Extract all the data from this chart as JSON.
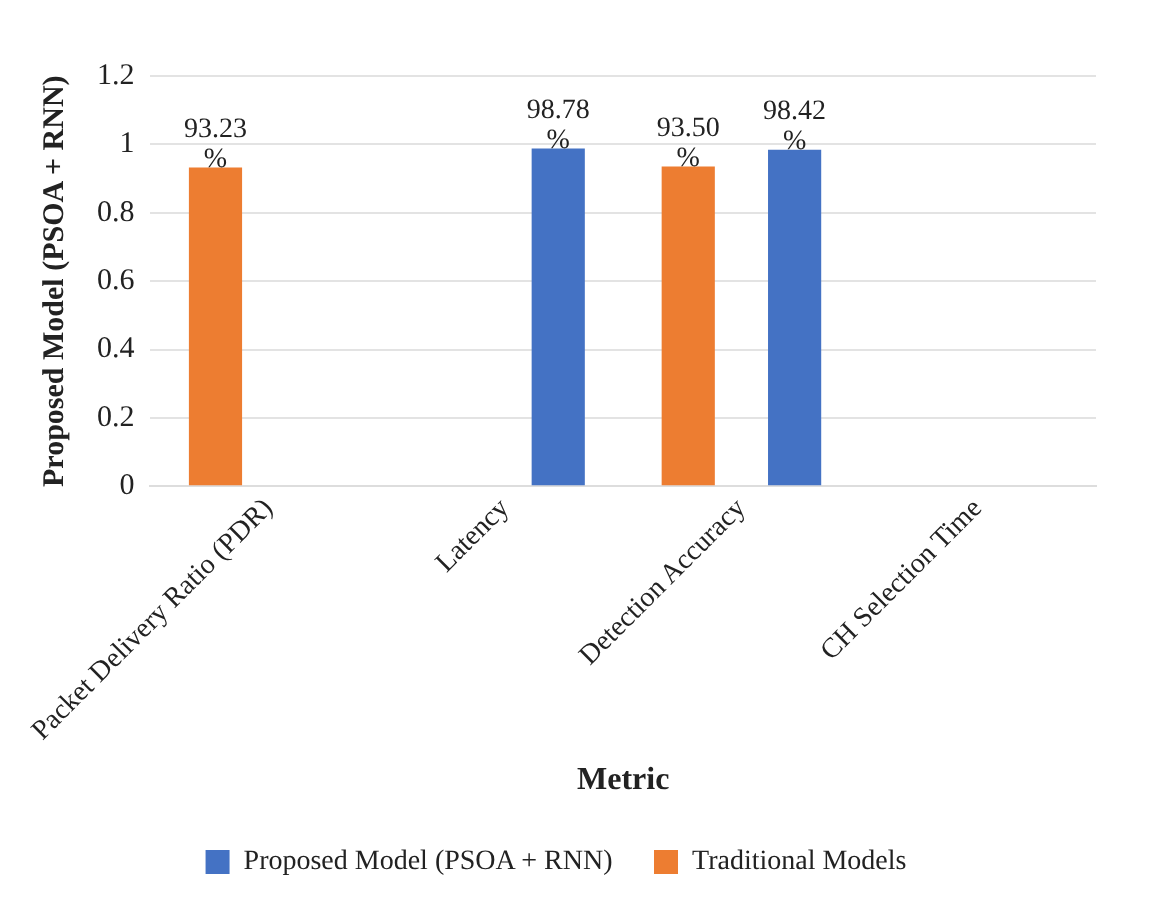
{
  "chart_data": {
    "type": "bar",
    "xlabel": "Metric",
    "ylabel": "Proposed Model (PSOA + RNN)",
    "categories": [
      "Packet Delivery Ratio (PDR)",
      "Latency",
      "Detection Accuracy",
      "CH Selection Time"
    ],
    "series": [
      {
        "name": "Proposed Model (PSOA + RNN)",
        "color": "#4472c4",
        "values": [
          null,
          0.9878,
          0.9842,
          null
        ],
        "value_labels": [
          null,
          "98.78 %",
          "98.42 %",
          null
        ]
      },
      {
        "name": "Traditional Models",
        "color": "#ed7d31",
        "values": [
          0.9323,
          null,
          0.935,
          null
        ],
        "value_labels": [
          "93.23 %",
          null,
          "93.50 %",
          null
        ]
      }
    ],
    "ylim": [
      0,
      1.2
    ],
    "yticks": [
      0,
      0.2,
      0.4,
      0.6,
      0.8,
      1,
      1.2
    ],
    "grid": "y",
    "legend": "bottom"
  }
}
